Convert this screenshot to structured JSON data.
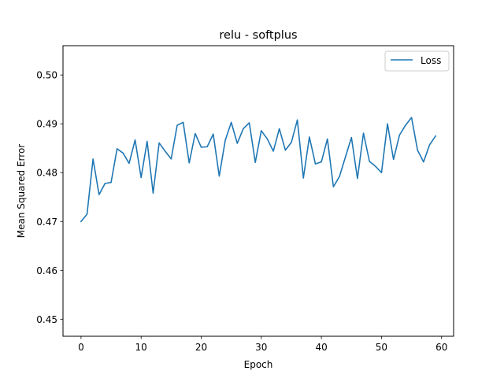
{
  "chart_data": {
    "type": "line",
    "title": "relu - softplus",
    "xlabel": "Epoch",
    "ylabel": "Mean Squared Error",
    "xlim": [
      -3,
      62
    ],
    "ylim": [
      0.4465,
      0.506
    ],
    "xticks": [
      0,
      10,
      20,
      30,
      40,
      50,
      60
    ],
    "yticks": [
      0.45,
      0.46,
      0.47,
      0.48,
      0.49,
      0.5
    ],
    "ytick_labels": [
      "0.45",
      "0.46",
      "0.47",
      "0.48",
      "0.49",
      "0.50"
    ],
    "grid": false,
    "legend_position": "top-right",
    "series": [
      {
        "name": "Loss",
        "color": "#1f77b4",
        "x": [
          0,
          1,
          2,
          3,
          4,
          5,
          6,
          7,
          8,
          9,
          10,
          11,
          12,
          13,
          14,
          15,
          16,
          17,
          18,
          19,
          20,
          21,
          22,
          23,
          24,
          25,
          26,
          27,
          28,
          29,
          30,
          31,
          32,
          33,
          34,
          35,
          36,
          37,
          38,
          39,
          40,
          41,
          42,
          43,
          44,
          45,
          46,
          47,
          48,
          49,
          50,
          51,
          52,
          53,
          54,
          55,
          56,
          57,
          58,
          59
        ],
        "values": [
          0.47,
          0.4715,
          0.4828,
          0.4755,
          0.4778,
          0.478,
          0.4849,
          0.484,
          0.4819,
          0.4867,
          0.479,
          0.4864,
          0.4758,
          0.4861,
          0.4844,
          0.4828,
          0.4897,
          0.4903,
          0.482,
          0.488,
          0.4852,
          0.4853,
          0.4879,
          0.4793,
          0.4866,
          0.4903,
          0.486,
          0.489,
          0.4902,
          0.4821,
          0.4886,
          0.4869,
          0.4844,
          0.489,
          0.4846,
          0.4862,
          0.4908,
          0.4789,
          0.4873,
          0.4818,
          0.4822,
          0.4869,
          0.4771,
          0.4792,
          0.4832,
          0.4872,
          0.4788,
          0.4881,
          0.4823,
          0.4813,
          0.48,
          0.49,
          0.4827,
          0.4877,
          0.4897,
          0.4913,
          0.4846,
          0.4822,
          0.4857,
          0.4875
        ]
      }
    ]
  }
}
